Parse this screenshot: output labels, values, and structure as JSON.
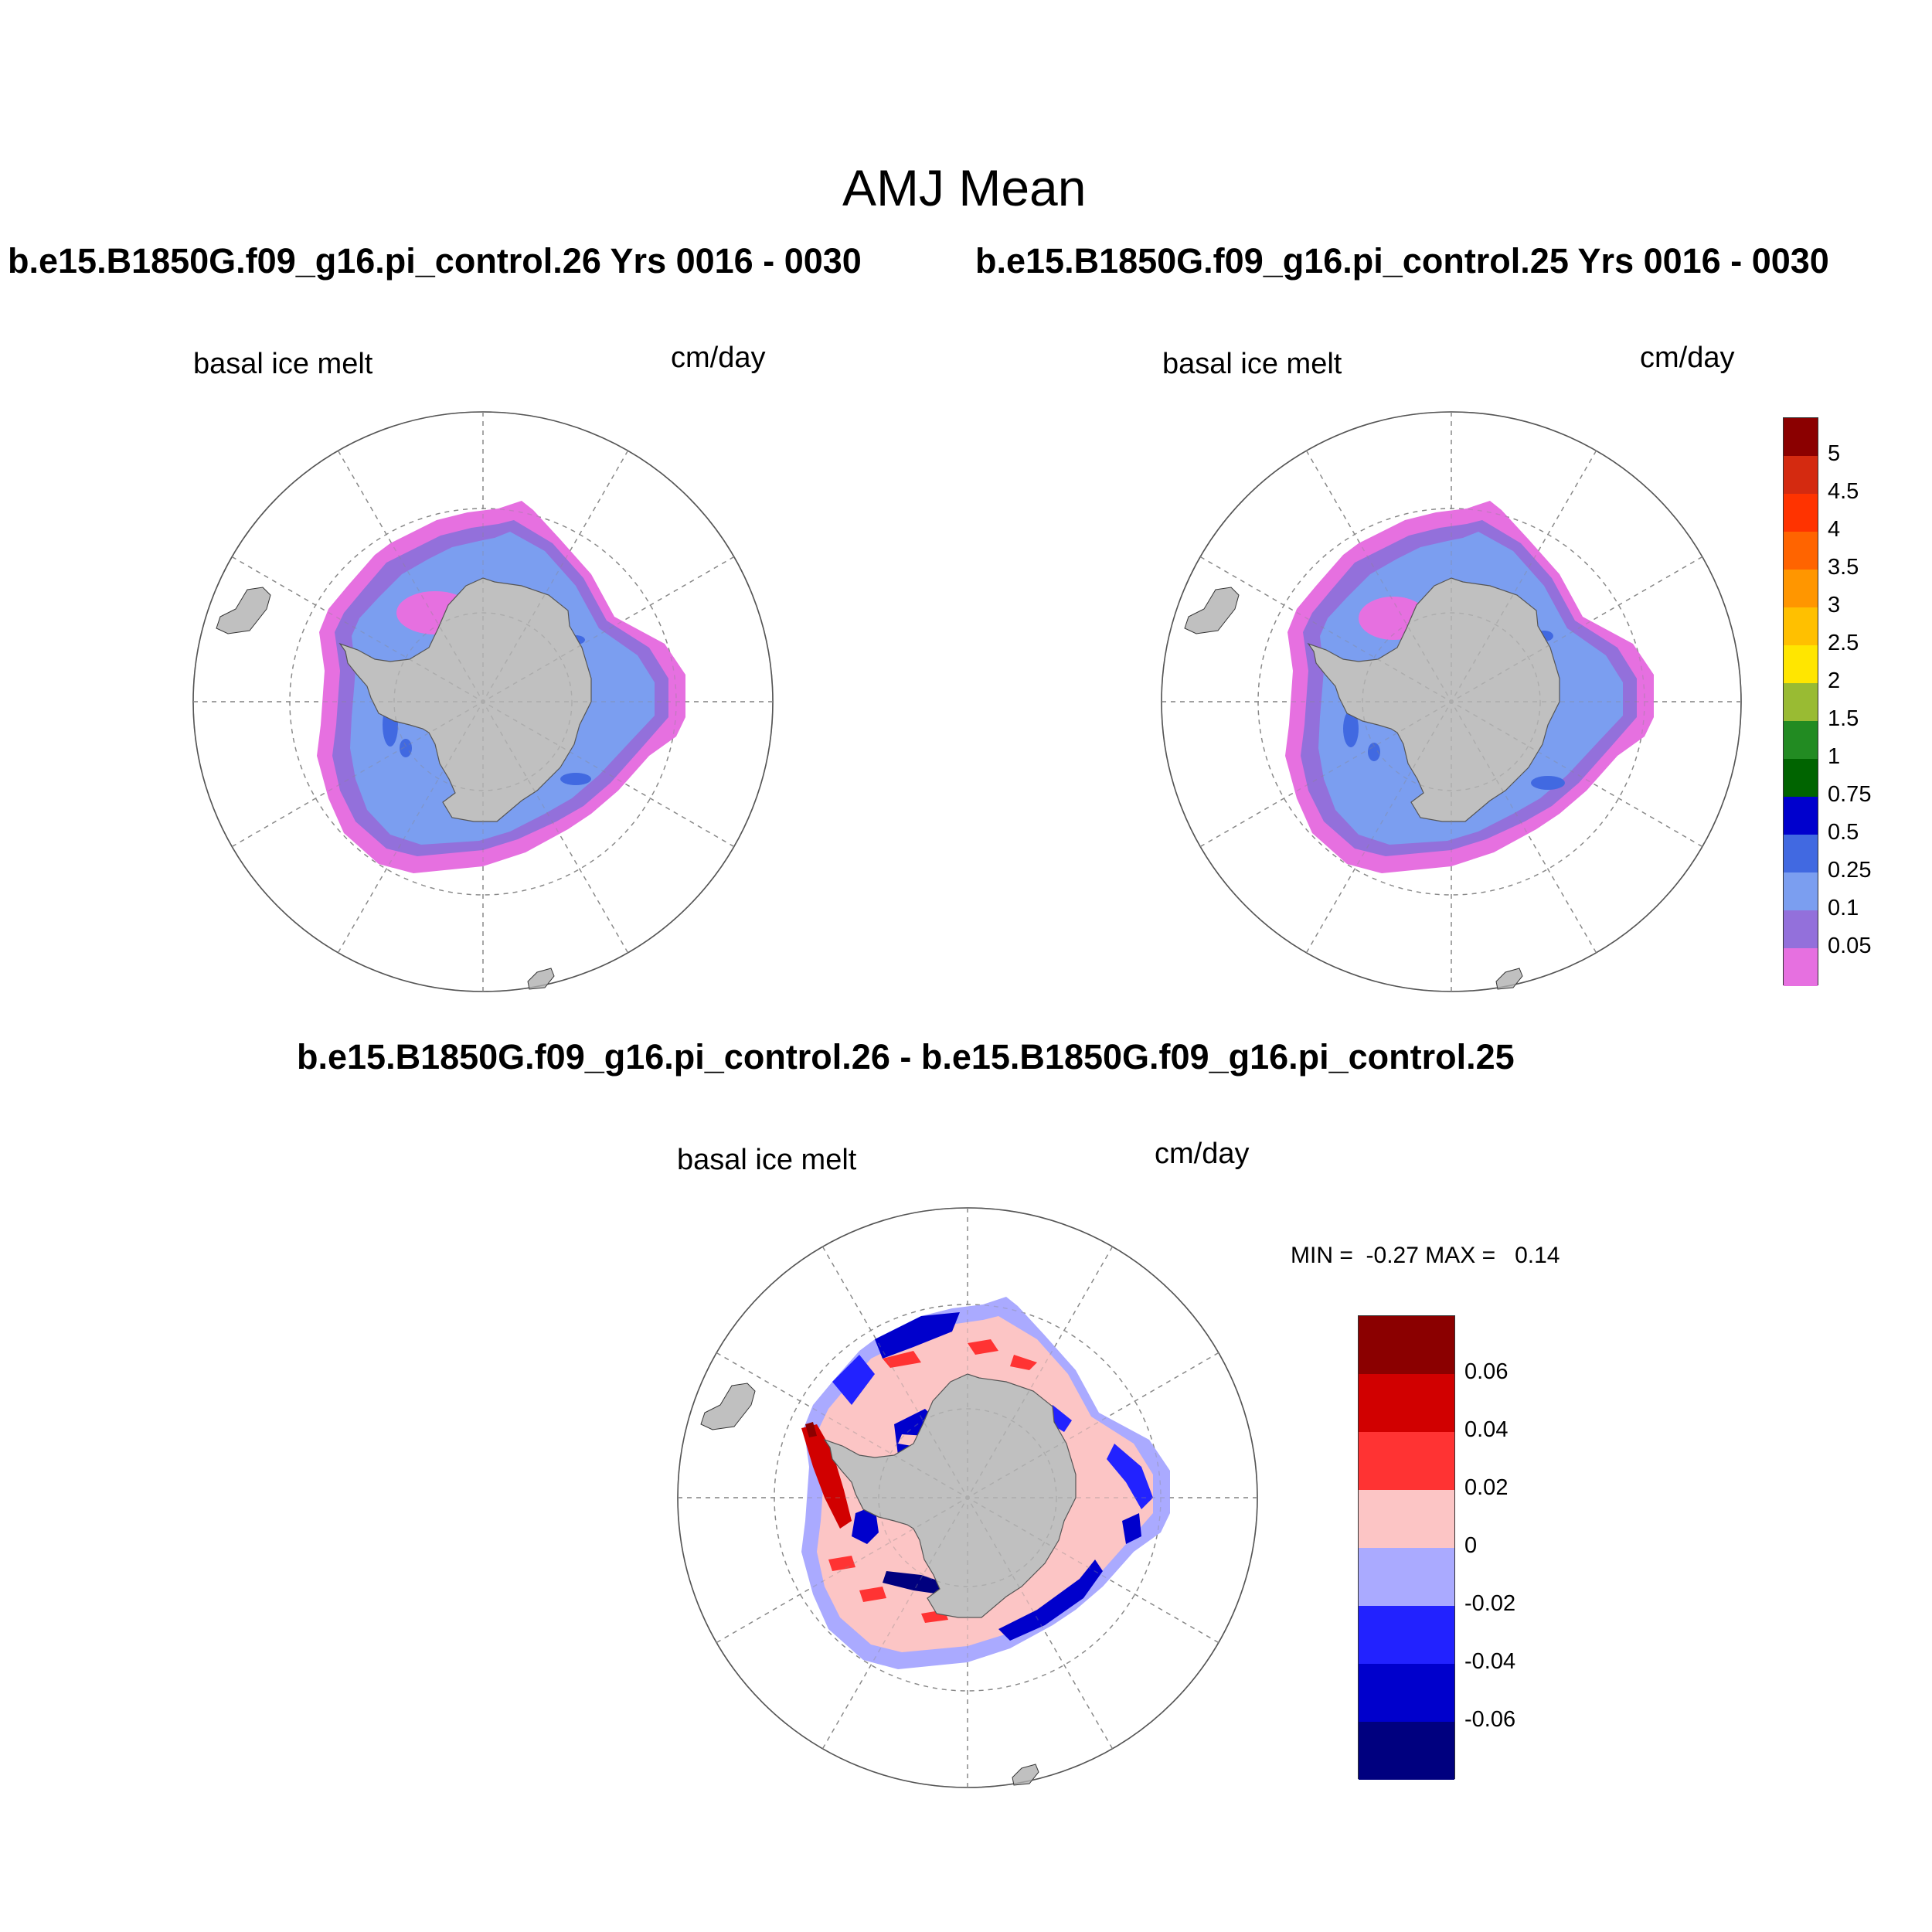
{
  "title": "AMJ Mean",
  "case_titles": {
    "left": "b.e15.B1850G.f09_g16.pi_control.26  Yrs 0016 - 0030",
    "right": "b.e15.B1850G.f09_g16.pi_control.25  Yrs 0016 - 0030",
    "diff": "b.e15.B1850G.f09_g16.pi_control.26 - b.e15.B1850G.f09_g16.pi_control.25"
  },
  "panels": [
    {
      "id": "case-26",
      "left_label": "basal ice melt",
      "right_label": "cm/day"
    },
    {
      "id": "case-25",
      "left_label": "basal ice melt",
      "right_label": "cm/day"
    },
    {
      "id": "difference",
      "left_label": "basal ice melt",
      "right_label": "cm/day"
    }
  ],
  "minmax_text": "MIN =  -0.27 MAX =   0.14",
  "colorbars": {
    "mean": {
      "labels": [
        "5",
        "4.5",
        "4",
        "3.5",
        "3",
        "2.5",
        "2",
        "1.5",
        "1",
        "0.75",
        "0.5",
        "0.25",
        "0.1",
        "0.05"
      ],
      "colors": [
        "#8b0000",
        "#d42a10",
        "#ff3300",
        "#ff6400",
        "#ff9600",
        "#ffc000",
        "#ffe600",
        "#99bb33",
        "#228b22",
        "#006400",
        "#0000cd",
        "#4169e1",
        "#7b9ef0",
        "#9370db",
        "#e670e0"
      ]
    },
    "diff": {
      "labels": [
        "0.06",
        "0.04",
        "0.02",
        "0",
        "-0.02",
        "-0.04",
        "-0.06"
      ],
      "colors": [
        "#8b0000",
        "#d10000",
        "#ff3333",
        "#fcc5c5",
        "#aaaaff",
        "#2222ff",
        "#0000cc",
        "#00007f"
      ]
    }
  },
  "map_colors": {
    "land": "#c0c0c0",
    "ice_edge": "#e670e0",
    "ice_mid": "#9370db",
    "ice_main": "#7b9ef0",
    "ice_high": "#4169e1",
    "ice_max": "#0000cd"
  }
}
